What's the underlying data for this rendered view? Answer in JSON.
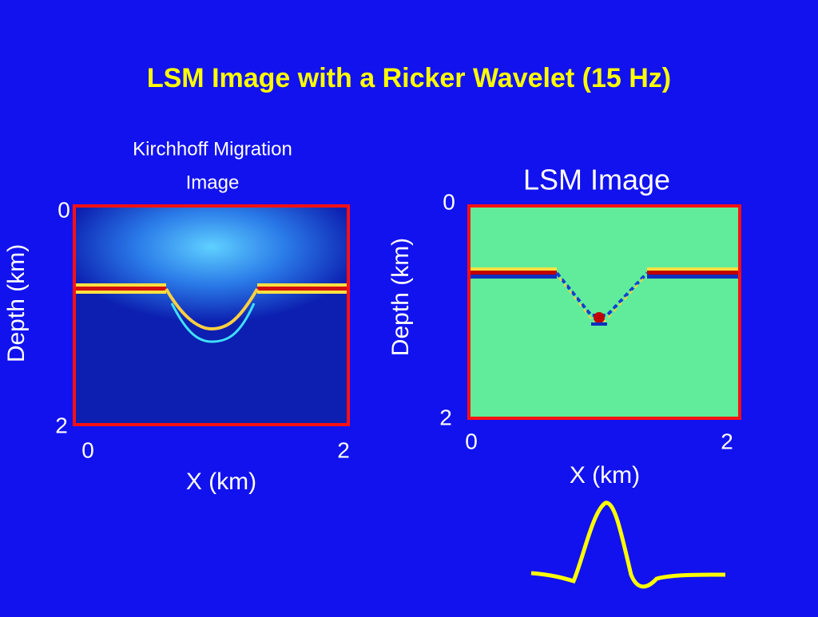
{
  "title": "LSM Image with a Ricker Wavelet (15 Hz)",
  "panels": [
    {
      "title_lines": [
        "Kirchhoff Migration",
        "Image"
      ],
      "ylabel": "Depth (km)",
      "xlabel": "X (km)",
      "yticks": [
        0,
        2
      ],
      "xticks": [
        0,
        2
      ]
    },
    {
      "title_lines": [
        "LSM Image"
      ],
      "ylabel": "Depth (km)",
      "xlabel": "X (km)",
      "yticks": [
        0,
        2
      ],
      "xticks": [
        0,
        2
      ]
    }
  ]
}
